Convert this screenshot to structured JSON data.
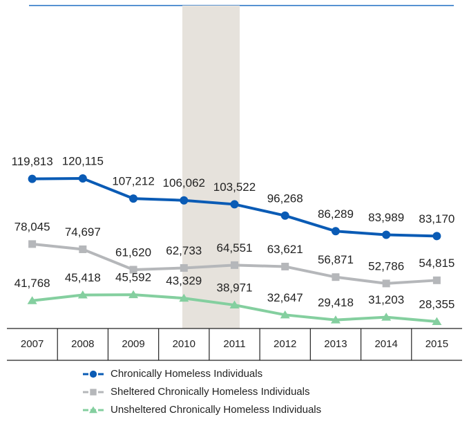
{
  "chart_data": {
    "type": "line",
    "categories": [
      "2007",
      "2008",
      "2009",
      "2010",
      "2011",
      "2012",
      "2013",
      "2014",
      "2015"
    ],
    "series": [
      {
        "name": "Chronically Homeless Individuals",
        "color": "#0a5bb5",
        "marker": "circle",
        "values": [
          119813,
          120115,
          107212,
          106062,
          103522,
          96268,
          86289,
          83989,
          83170
        ],
        "value_labels": [
          "119,813",
          "120,115",
          "107,212",
          "106,062",
          "103,522",
          "96,268",
          "86,289",
          "83,989",
          "83,170"
        ]
      },
      {
        "name": "Sheltered Chronically Homeless Individuals",
        "color": "#b5b7ba",
        "marker": "square",
        "values": [
          78045,
          74697,
          61620,
          62733,
          64551,
          63621,
          56871,
          52786,
          54815
        ],
        "value_labels": [
          "78,045",
          "74,697",
          "61,620",
          "62,733",
          "64,551",
          "63,621",
          "56,871",
          "52,786",
          "54,815"
        ]
      },
      {
        "name": "Unsheltered Chronically Homeless Individuals",
        "color": "#84cf9f",
        "marker": "triangle",
        "values": [
          41768,
          45418,
          45592,
          43329,
          38971,
          32647,
          29418,
          31203,
          28355
        ],
        "value_labels": [
          "41,768",
          "45,418",
          "45,592",
          "43,329",
          "38,971",
          "32,647",
          "29,418",
          "31,203",
          "28,355"
        ]
      }
    ]
  }
}
